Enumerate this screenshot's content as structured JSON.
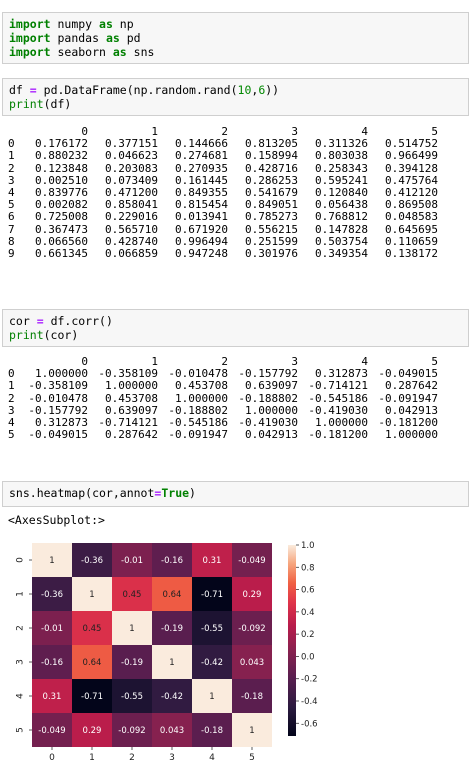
{
  "cells": [
    {
      "lines": [
        [
          [
            "kw",
            "import"
          ],
          [
            "t",
            " numpy "
          ],
          [
            "kw",
            "as"
          ],
          [
            "t",
            " np"
          ]
        ],
        [
          [
            "kw",
            "import"
          ],
          [
            "t",
            " pandas "
          ],
          [
            "kw",
            "as"
          ],
          [
            "t",
            " pd"
          ]
        ],
        [
          [
            "kw",
            "import"
          ],
          [
            "t",
            " seaborn "
          ],
          [
            "kw",
            "as"
          ],
          [
            "t",
            " sns"
          ]
        ]
      ]
    },
    {
      "lines": [
        [
          [
            "t",
            "df "
          ],
          [
            "op",
            "="
          ],
          [
            "t",
            " pd.DataFrame(np.random.rand("
          ],
          [
            "num",
            "10"
          ],
          [
            "t",
            ","
          ],
          [
            "num",
            "6"
          ],
          [
            "t",
            "))"
          ]
        ],
        [
          [
            "fn",
            "print"
          ],
          [
            "t",
            "(df)"
          ]
        ]
      ]
    },
    {
      "lines": [
        [
          [
            "t",
            "cor "
          ],
          [
            "op",
            "="
          ],
          [
            "t",
            " df.corr()"
          ]
        ],
        [
          [
            "fn",
            "print"
          ],
          [
            "t",
            "(cor)"
          ]
        ]
      ]
    },
    {
      "lines": [
        [
          [
            "t",
            "sns.heatmap(cor,annot"
          ],
          [
            "op",
            "="
          ],
          [
            "kw",
            "True"
          ],
          [
            "t",
            ")"
          ]
        ]
      ]
    }
  ],
  "df_output": {
    "columns": [
      "0",
      "1",
      "2",
      "3",
      "4",
      "5"
    ],
    "rows": [
      {
        "index": "0",
        "values": [
          "0.176172",
          "0.377151",
          "0.144666",
          "0.813205",
          "0.311326",
          "0.514752"
        ]
      },
      {
        "index": "1",
        "values": [
          "0.880232",
          "0.046623",
          "0.274681",
          "0.158994",
          "0.803038",
          "0.966499"
        ]
      },
      {
        "index": "2",
        "values": [
          "0.123848",
          "0.203083",
          "0.270935",
          "0.428716",
          "0.258343",
          "0.394128"
        ]
      },
      {
        "index": "3",
        "values": [
          "0.002510",
          "0.073409",
          "0.161445",
          "0.286253",
          "0.595241",
          "0.475764"
        ]
      },
      {
        "index": "4",
        "values": [
          "0.839776",
          "0.471200",
          "0.849355",
          "0.541679",
          "0.120840",
          "0.412120"
        ]
      },
      {
        "index": "5",
        "values": [
          "0.002082",
          "0.858041",
          "0.815454",
          "0.849051",
          "0.056438",
          "0.869508"
        ]
      },
      {
        "index": "6",
        "values": [
          "0.725008",
          "0.229016",
          "0.013941",
          "0.785273",
          "0.768812",
          "0.048583"
        ]
      },
      {
        "index": "7",
        "values": [
          "0.367473",
          "0.565710",
          "0.671920",
          "0.556215",
          "0.147828",
          "0.645695"
        ]
      },
      {
        "index": "8",
        "values": [
          "0.066560",
          "0.428740",
          "0.996494",
          "0.251599",
          "0.503754",
          "0.110659"
        ]
      },
      {
        "index": "9",
        "values": [
          "0.661345",
          "0.066859",
          "0.947248",
          "0.301976",
          "0.349354",
          "0.138172"
        ]
      }
    ]
  },
  "cor_output": {
    "columns": [
      "0",
      "1",
      "2",
      "3",
      "4",
      "5"
    ],
    "rows": [
      {
        "index": "0",
        "values": [
          "1.000000",
          "-0.358109",
          "-0.010478",
          "-0.157792",
          "0.312873",
          "-0.049015"
        ]
      },
      {
        "index": "1",
        "values": [
          "-0.358109",
          "1.000000",
          "0.453708",
          "0.639097",
          "-0.714121",
          "0.287642"
        ]
      },
      {
        "index": "2",
        "values": [
          "-0.010478",
          "0.453708",
          "1.000000",
          "-0.188802",
          "-0.545186",
          "-0.091947"
        ]
      },
      {
        "index": "3",
        "values": [
          "-0.157792",
          "0.639097",
          "-0.188802",
          "1.000000",
          "-0.419030",
          "0.042913"
        ]
      },
      {
        "index": "4",
        "values": [
          "0.312873",
          "-0.714121",
          "-0.545186",
          "-0.419030",
          "1.000000",
          "-0.181200"
        ]
      },
      {
        "index": "5",
        "values": [
          "-0.049015",
          "0.287642",
          "-0.091947",
          "0.042913",
          "-0.181200",
          "1.000000"
        ]
      }
    ]
  },
  "axes_repr": "<AxesSubplot:>",
  "chart_data": {
    "type": "heatmap",
    "xlabels": [
      "0",
      "1",
      "2",
      "3",
      "4",
      "5"
    ],
    "ylabels": [
      "0",
      "1",
      "2",
      "3",
      "4",
      "5"
    ],
    "values": [
      [
        1.0,
        -0.358109,
        -0.010478,
        -0.157792,
        0.312873,
        -0.049015
      ],
      [
        -0.358109,
        1.0,
        0.453708,
        0.639097,
        -0.714121,
        0.287642
      ],
      [
        -0.010478,
        0.453708,
        1.0,
        -0.188802,
        -0.545186,
        -0.091947
      ],
      [
        -0.157792,
        0.639097,
        -0.188802,
        1.0,
        -0.41903,
        0.042913
      ],
      [
        0.312873,
        -0.714121,
        -0.545186,
        -0.41903,
        1.0,
        -0.1812
      ],
      [
        -0.049015,
        0.287642,
        -0.091947,
        0.042913,
        -0.1812,
        1.0
      ]
    ],
    "annotations": [
      [
        "1",
        "-0.36",
        "-0.01",
        "-0.16",
        "0.31",
        "-0.049"
      ],
      [
        "-0.36",
        "1",
        "0.45",
        "0.64",
        "-0.71",
        "0.29"
      ],
      [
        "-0.01",
        "0.45",
        "1",
        "-0.19",
        "-0.55",
        "-0.092"
      ],
      [
        "-0.16",
        "0.64",
        "-0.19",
        "1",
        "-0.42",
        "0.043"
      ],
      [
        "0.31",
        "-0.71",
        "-0.55",
        "-0.42",
        "1",
        "-0.18"
      ],
      [
        "-0.049",
        "0.29",
        "-0.092",
        "0.043",
        "-0.18",
        "1"
      ]
    ],
    "colorbar_ticks": [
      "1.0",
      "0.8",
      "0.6",
      "0.4",
      "0.2",
      "0.0",
      "-0.2",
      "-0.4",
      "-0.6"
    ],
    "vmin": -0.714121,
    "vmax": 1.0,
    "colormap": "rocket"
  }
}
